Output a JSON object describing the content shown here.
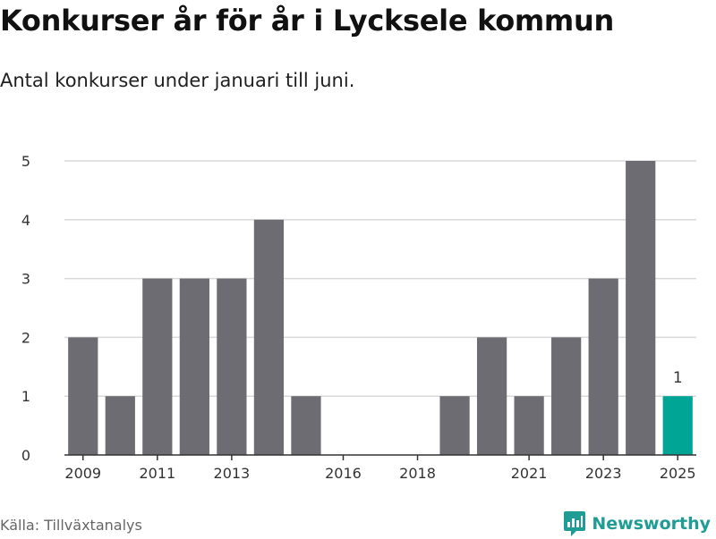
{
  "title": "Konkurser år för år i Lycksele kommun",
  "subtitle": "Antal konkurser under januari till juni.",
  "source": "Källa: Tillväxtanalys",
  "brand": {
    "name": "Newsworthy",
    "icon": "newsworthy-logo-icon",
    "color": "#1f9d95"
  },
  "chart_data": {
    "type": "bar",
    "title": "Konkurser år för år i Lycksele kommun",
    "subtitle": "Antal konkurser under januari till juni.",
    "categories": [
      "2009",
      "2010",
      "2011",
      "2012",
      "2013",
      "2014",
      "2015",
      "2016",
      "2017",
      "2018",
      "2019",
      "2020",
      "2021",
      "2022",
      "2023",
      "2024",
      "2025"
    ],
    "values": [
      2,
      1,
      3,
      3,
      3,
      4,
      1,
      0,
      0,
      0,
      1,
      2,
      1,
      2,
      3,
      5,
      1
    ],
    "x_tick_labels": [
      "2009",
      "2011",
      "2013",
      "2016",
      "2018",
      "2021",
      "2023",
      "2025"
    ],
    "y_ticks": [
      0,
      1,
      2,
      3,
      4,
      5
    ],
    "ylim": [
      0,
      5
    ],
    "grid": true,
    "colors": {
      "bar": "#6d6c72",
      "highlight": "#00a596",
      "grid": "#d9d9d9",
      "axis": "#333333"
    },
    "highlight_category": "2025",
    "data_labels": [
      {
        "category": "2025",
        "text": "1"
      }
    ]
  }
}
